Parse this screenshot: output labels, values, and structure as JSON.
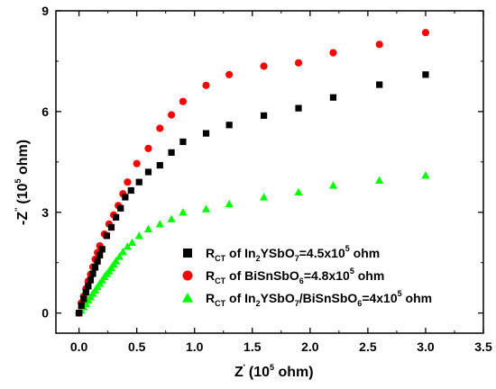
{
  "chart_data": {
    "type": "scatter",
    "xlabel": {
      "main": "Z",
      "prime": "'",
      "unit": "(10",
      "exp": "5",
      "unit_end": " ohm)"
    },
    "ylabel": {
      "main": "-Z",
      "prime": "''",
      "unit": "(10",
      "exp": "5",
      "unit_end": " ohm)"
    },
    "xlim": [
      -0.2,
      3.5
    ],
    "ylim": [
      -0.6,
      9
    ],
    "xticks": [
      "0.0",
      "0.5",
      "1.0",
      "1.5",
      "2.0",
      "2.5",
      "3.0",
      "3.5"
    ],
    "xtick_values": [
      0,
      0.5,
      1.0,
      1.5,
      2.0,
      2.5,
      3.0,
      3.5
    ],
    "yticks": [
      "0",
      "3",
      "6",
      "9"
    ],
    "ytick_values": [
      0,
      3,
      6,
      9
    ],
    "grid": false,
    "legend_position": "bottom-right",
    "series": [
      {
        "name": "R_CT of In2YSbO7=4.5x10^5 ohm",
        "legend": {
          "r": "R",
          "ct": "CT",
          "of": " of ",
          "formula": [
            [
              "In",
              ""
            ],
            [
              "2",
              "sub"
            ],
            [
              "YSbO",
              ""
            ],
            [
              "7",
              "sub"
            ]
          ],
          "eq": "=4.5x10",
          "exp": "5",
          "unit": " ohm"
        },
        "marker": "square",
        "color": "#000000",
        "points": [
          [
            0.0,
            0.0
          ],
          [
            0.02,
            0.22
          ],
          [
            0.04,
            0.42
          ],
          [
            0.06,
            0.62
          ],
          [
            0.08,
            0.8
          ],
          [
            0.1,
            0.98
          ],
          [
            0.12,
            1.17
          ],
          [
            0.14,
            1.36
          ],
          [
            0.16,
            1.54
          ],
          [
            0.18,
            1.72
          ],
          [
            0.2,
            1.9
          ],
          [
            0.24,
            2.3
          ],
          [
            0.28,
            2.55
          ],
          [
            0.32,
            2.85
          ],
          [
            0.36,
            3.12
          ],
          [
            0.4,
            3.45
          ],
          [
            0.45,
            3.65
          ],
          [
            0.52,
            3.9
          ],
          [
            0.6,
            4.2
          ],
          [
            0.7,
            4.4
          ],
          [
            0.8,
            4.78
          ],
          [
            0.9,
            5.1
          ],
          [
            1.1,
            5.35
          ],
          [
            1.3,
            5.6
          ],
          [
            1.6,
            5.88
          ],
          [
            1.9,
            6.1
          ],
          [
            2.2,
            6.42
          ],
          [
            2.6,
            6.8
          ],
          [
            3.0,
            7.1
          ]
        ]
      },
      {
        "name": "R_CT of BiSnSbO6=4.8x10^5 ohm",
        "legend": {
          "r": "R",
          "ct": "CT",
          "of": " of ",
          "formula": [
            [
              "BiSnSbO",
              ""
            ],
            [
              "6",
              "sub"
            ]
          ],
          "eq": "=4.8x10",
          "exp": "5",
          "unit": " ohm"
        },
        "marker": "circle",
        "color": "#ff0000",
        "points": [
          [
            0.0,
            0.0
          ],
          [
            0.02,
            0.3
          ],
          [
            0.04,
            0.5
          ],
          [
            0.06,
            0.72
          ],
          [
            0.08,
            0.95
          ],
          [
            0.1,
            1.15
          ],
          [
            0.12,
            1.37
          ],
          [
            0.14,
            1.6
          ],
          [
            0.16,
            1.8
          ],
          [
            0.18,
            2.0
          ],
          [
            0.22,
            2.35
          ],
          [
            0.26,
            2.65
          ],
          [
            0.3,
            2.92
          ],
          [
            0.34,
            3.2
          ],
          [
            0.38,
            3.55
          ],
          [
            0.42,
            3.9
          ],
          [
            0.5,
            4.45
          ],
          [
            0.6,
            4.9
          ],
          [
            0.7,
            5.5
          ],
          [
            0.8,
            5.9
          ],
          [
            0.9,
            6.3
          ],
          [
            1.1,
            6.78
          ],
          [
            1.3,
            7.1
          ],
          [
            1.6,
            7.35
          ],
          [
            1.9,
            7.45
          ],
          [
            2.2,
            7.75
          ],
          [
            2.6,
            8.0
          ],
          [
            3.0,
            8.35
          ]
        ]
      },
      {
        "name": "R_CT of In2YSbO7/BiSnSbO6=4x10^5 ohm",
        "legend": {
          "r": "R",
          "ct": "CT",
          "of": " of ",
          "formula": [
            [
              "In",
              ""
            ],
            [
              "2",
              "sub"
            ],
            [
              "YSbO",
              ""
            ],
            [
              "7",
              "sub"
            ],
            [
              "/BiSnSbO",
              ""
            ],
            [
              "6",
              "sub"
            ]
          ],
          "eq": "=4x10",
          "exp": "5",
          "unit": " ohm"
        },
        "marker": "triangle",
        "color": "#00ff00",
        "points": [
          [
            0.0,
            0.0
          ],
          [
            0.02,
            0.08
          ],
          [
            0.04,
            0.18
          ],
          [
            0.06,
            0.28
          ],
          [
            0.08,
            0.38
          ],
          [
            0.1,
            0.48
          ],
          [
            0.12,
            0.58
          ],
          [
            0.14,
            0.68
          ],
          [
            0.16,
            0.78
          ],
          [
            0.18,
            0.88
          ],
          [
            0.2,
            0.98
          ],
          [
            0.22,
            1.08
          ],
          [
            0.24,
            1.17
          ],
          [
            0.26,
            1.25
          ],
          [
            0.28,
            1.35
          ],
          [
            0.3,
            1.45
          ],
          [
            0.32,
            1.55
          ],
          [
            0.35,
            1.68
          ],
          [
            0.38,
            1.82
          ],
          [
            0.42,
            1.98
          ],
          [
            0.46,
            2.1
          ],
          [
            0.52,
            2.3
          ],
          [
            0.6,
            2.5
          ],
          [
            0.7,
            2.65
          ],
          [
            0.8,
            2.8
          ],
          [
            0.9,
            3.0
          ],
          [
            1.1,
            3.1
          ],
          [
            1.3,
            3.25
          ],
          [
            1.6,
            3.45
          ],
          [
            1.9,
            3.6
          ],
          [
            2.2,
            3.8
          ],
          [
            2.6,
            3.95
          ],
          [
            3.0,
            4.1
          ]
        ]
      }
    ]
  }
}
